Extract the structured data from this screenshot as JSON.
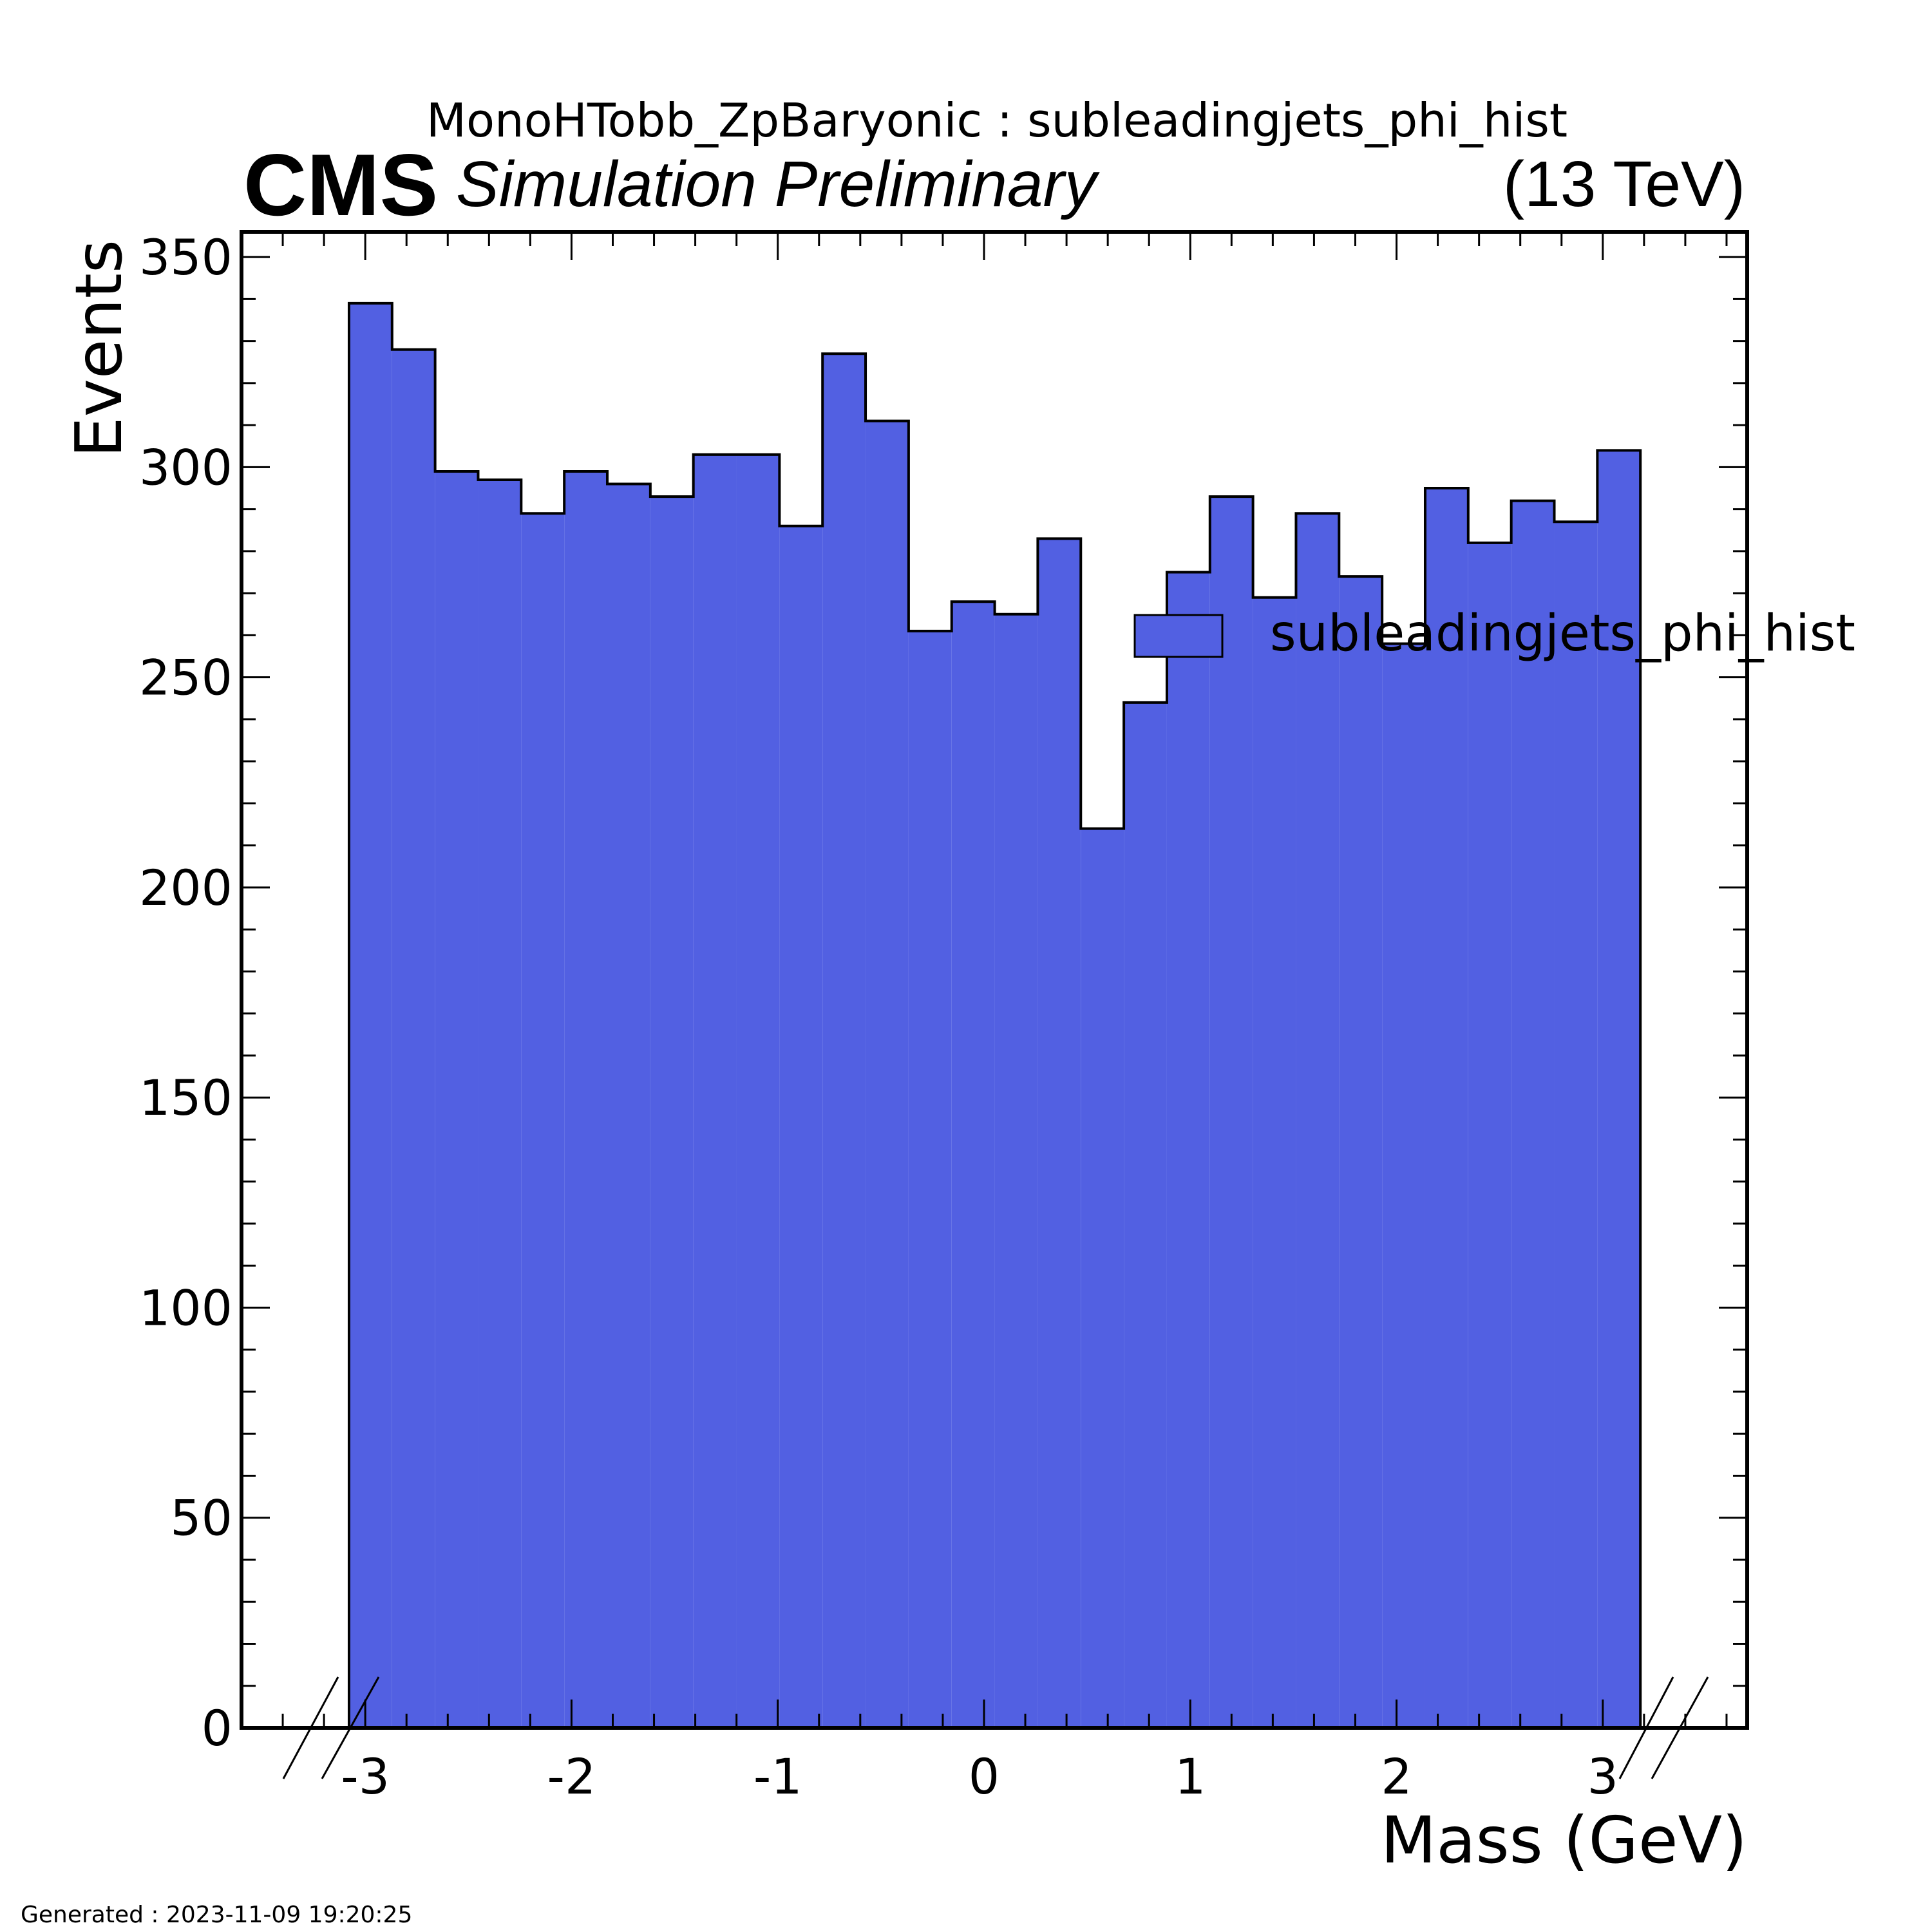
{
  "header": {
    "title": "MonoHTobb_ZpBaryonic : subleadingjets_phi_hist",
    "experiment": "CMS",
    "status": "Simulation Preliminary",
    "energy": "(13 TeV)"
  },
  "footer": {
    "generated": "Generated : 2023-11-09 19:20:25"
  },
  "colors": {
    "fill": "#5260e2",
    "edge": "#000000"
  },
  "chart_data": {
    "type": "bar",
    "title": "MonoHTobb_ZpBaryonic : subleadingjets_phi_hist",
    "xlabel": "Mass (GeV)",
    "ylabel": "Events",
    "xlim": [
      -3.6,
      3.7
    ],
    "ylim": [
      0,
      356
    ],
    "x_ticks": [
      -3,
      -2,
      -1,
      0,
      1,
      2,
      3
    ],
    "x_tick_labels": [
      "-3",
      "-2",
      "-1",
      "0",
      "1",
      "2",
      "3"
    ],
    "y_ticks": [
      0,
      50,
      100,
      150,
      200,
      250,
      300,
      350
    ],
    "y_tick_labels": [
      "0",
      "50",
      "100",
      "150",
      "200",
      "250",
      "300",
      "350"
    ],
    "legend": {
      "position": "right",
      "entries": [
        "subleadingjets_phi_hist"
      ]
    },
    "bin_low": -3.0787,
    "bin_width": 0.2087,
    "series": [
      {
        "name": "subleadingjets_phi_hist",
        "values": [
          339,
          328,
          299,
          297,
          289,
          299,
          296,
          293,
          303,
          303,
          286,
          327,
          311,
          261,
          268,
          265,
          283,
          214,
          244,
          275,
          293,
          269,
          289,
          274,
          258,
          295,
          282,
          292,
          287,
          304
        ]
      }
    ]
  }
}
